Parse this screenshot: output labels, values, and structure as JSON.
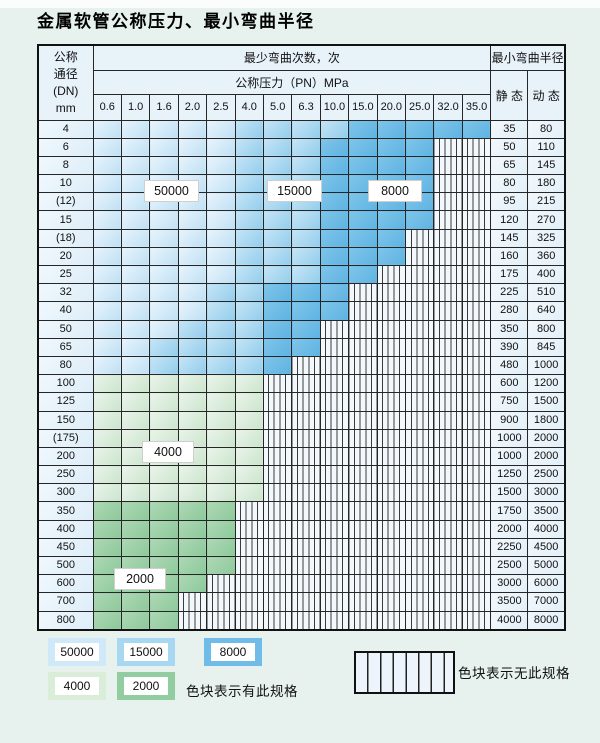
{
  "title": "金属软管公称压力、最小弯曲半径",
  "table": {
    "header": {
      "dn_lines": [
        "公称",
        "通径",
        "(DN)",
        "mm"
      ],
      "bend_cycles": "最少弯曲次数，次",
      "pressure": "公称压力（PN）MPa",
      "min_radius": "最小弯曲半径",
      "static": "静 态",
      "dynamic": "动 态",
      "pressure_cols": [
        "0.6",
        "1.0",
        "1.6",
        "2.0",
        "2.5",
        "4.0",
        "5.0",
        "6.3",
        "10.0",
        "15.0",
        "20.0",
        "25.0",
        "32.0",
        "35.0"
      ]
    },
    "rows": [
      {
        "dn": "4",
        "static": "35",
        "dynamic": "80",
        "zone": "blue",
        "light": 5,
        "medium": 9,
        "colored": 14
      },
      {
        "dn": "6",
        "static": "50",
        "dynamic": "110",
        "zone": "blue",
        "light": 5,
        "medium": 8,
        "colored": 12
      },
      {
        "dn": "8",
        "static": "65",
        "dynamic": "145",
        "zone": "blue",
        "light": 5,
        "medium": 8,
        "colored": 12
      },
      {
        "dn": "10",
        "static": "80",
        "dynamic": "180",
        "zone": "blue",
        "light": 5,
        "medium": 8,
        "colored": 12
      },
      {
        "dn": "(12)",
        "static": "95",
        "dynamic": "215",
        "zone": "blue",
        "light": 5,
        "medium": 8,
        "colored": 12
      },
      {
        "dn": "15",
        "static": "120",
        "dynamic": "270",
        "zone": "blue",
        "light": 5,
        "medium": 8,
        "colored": 12
      },
      {
        "dn": "(18)",
        "static": "145",
        "dynamic": "325",
        "zone": "blue",
        "light": 5,
        "medium": 8,
        "colored": 11
      },
      {
        "dn": "20",
        "static": "160",
        "dynamic": "360",
        "zone": "blue",
        "light": 5,
        "medium": 8,
        "colored": 11
      },
      {
        "dn": "25",
        "static": "175",
        "dynamic": "400",
        "zone": "blue",
        "light": 5,
        "medium": 8,
        "colored": 10
      },
      {
        "dn": "32",
        "static": "225",
        "dynamic": "510",
        "zone": "blue",
        "light": 4,
        "medium": 6,
        "colored": 9
      },
      {
        "dn": "40",
        "static": "280",
        "dynamic": "640",
        "zone": "blue",
        "light": 4,
        "medium": 6,
        "colored": 9
      },
      {
        "dn": "50",
        "static": "350",
        "dynamic": "800",
        "zone": "blue",
        "light": 3,
        "medium": 6,
        "colored": 8
      },
      {
        "dn": "65",
        "static": "390",
        "dynamic": "845",
        "zone": "blue",
        "light": 2,
        "medium": 6,
        "colored": 8
      },
      {
        "dn": "80",
        "static": "480",
        "dynamic": "1000",
        "zone": "blue",
        "light": 2,
        "medium": 6,
        "colored": 7
      },
      {
        "dn": "100",
        "static": "600",
        "dynamic": "1200",
        "zone": "green4",
        "colored": 6
      },
      {
        "dn": "125",
        "static": "750",
        "dynamic": "1500",
        "zone": "green4",
        "colored": 6
      },
      {
        "dn": "150",
        "static": "900",
        "dynamic": "1800",
        "zone": "green4",
        "colored": 6
      },
      {
        "dn": "(175)",
        "static": "1000",
        "dynamic": "2000",
        "zone": "green4",
        "colored": 6
      },
      {
        "dn": "200",
        "static": "1000",
        "dynamic": "2000",
        "zone": "green4",
        "colored": 6
      },
      {
        "dn": "250",
        "static": "1250",
        "dynamic": "2500",
        "zone": "green4",
        "colored": 6
      },
      {
        "dn": "300",
        "static": "1500",
        "dynamic": "3000",
        "zone": "green4",
        "colored": 6
      },
      {
        "dn": "350",
        "static": "1750",
        "dynamic": "3500",
        "zone": "green2",
        "colored": 5
      },
      {
        "dn": "400",
        "static": "2000",
        "dynamic": "4000",
        "zone": "green2",
        "colored": 5
      },
      {
        "dn": "450",
        "static": "2250",
        "dynamic": "4500",
        "zone": "green2",
        "colored": 5
      },
      {
        "dn": "500",
        "static": "2500",
        "dynamic": "5000",
        "zone": "green2",
        "colored": 5
      },
      {
        "dn": "600",
        "static": "3000",
        "dynamic": "6000",
        "zone": "green2",
        "colored": 4
      },
      {
        "dn": "700",
        "static": "3500",
        "dynamic": "7000",
        "zone": "green2",
        "colored": 3
      },
      {
        "dn": "800",
        "static": "4000",
        "dynamic": "8000",
        "zone": "green2",
        "colored": 3
      }
    ]
  },
  "overlay_labels": {
    "l50000": "50000",
    "l15000": "15000",
    "l8000": "8000",
    "l4000": "4000",
    "l2000": "2000"
  },
  "legend": {
    "swatches": [
      {
        "label": "50000",
        "zone": "blue_light"
      },
      {
        "label": "15000",
        "zone": "blue_medium"
      },
      {
        "label": "8000",
        "zone": "blue_dark"
      },
      {
        "label": "4000",
        "zone": "green_light"
      },
      {
        "label": "2000",
        "zone": "green_medium"
      }
    ],
    "note_has": "色块表示有此规格",
    "note_none": "色块表示无此规格"
  },
  "colors": {
    "blue_light": "#cfe9f9",
    "blue_medium": "#a8d7f2",
    "blue_dark": "#6fbce8",
    "green_light": "#d9edd9",
    "green_medium": "#92cda2",
    "hatch_bg": "#f2f8fc",
    "grid": "#262626",
    "page_bg": "#e7f2ee"
  }
}
